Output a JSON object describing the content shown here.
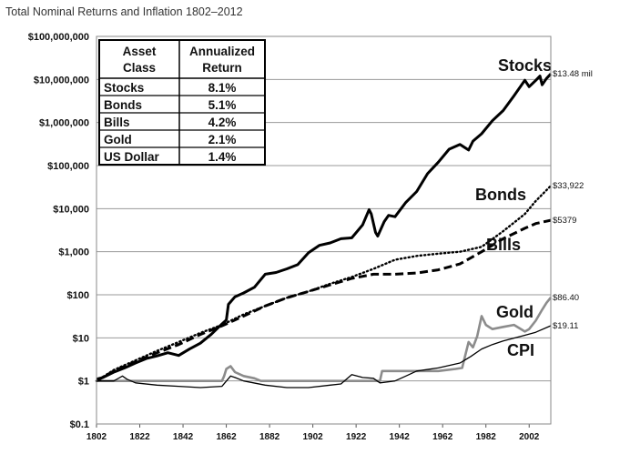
{
  "chart_data": {
    "type": "line",
    "title": "Total Nominal Returns and Inflation 1802–2012",
    "xlabel": "",
    "ylabel": "",
    "xlim": [
      1802,
      2012
    ],
    "ylim": [
      0.1,
      100000000
    ],
    "y_scale": "log",
    "grid": "horizontal",
    "x_ticks": [
      "1802",
      "1822",
      "1842",
      "1862",
      "1882",
      "1902",
      "1922",
      "1942",
      "1962",
      "1982",
      "2002"
    ],
    "y_ticks": [
      {
        "value": 100000000,
        "label": "$100,000,000"
      },
      {
        "value": 10000000,
        "label": "$10,000,000"
      },
      {
        "value": 1000000,
        "label": "$1,000,000"
      },
      {
        "value": 100000,
        "label": "$100,000"
      },
      {
        "value": 10000,
        "label": "$10,000"
      },
      {
        "value": 1000,
        "label": "$1,000"
      },
      {
        "value": 100,
        "label": "$100"
      },
      {
        "value": 10,
        "label": "$10"
      },
      {
        "value": 1,
        "label": "$1"
      },
      {
        "value": 0.1,
        "label": "$0.1"
      }
    ],
    "series": [
      {
        "name": "Stocks",
        "end_label": "$13.48 mil",
        "style": "solid-thick",
        "color": "#000000",
        "x": [
          1802,
          1805,
          1810,
          1815,
          1820,
          1825,
          1830,
          1835,
          1840,
          1845,
          1850,
          1855,
          1860,
          1862,
          1863,
          1866,
          1870,
          1875,
          1880,
          1885,
          1890,
          1895,
          1900,
          1905,
          1910,
          1915,
          1920,
          1925,
          1928,
          1929,
          1931,
          1932,
          1935,
          1937,
          1940,
          1945,
          1950,
          1955,
          1960,
          1965,
          1970,
          1974,
          1976,
          1980,
          1985,
          1990,
          1995,
          2000,
          2002,
          2005,
          2007,
          2008,
          2010,
          2012
        ],
        "y": [
          1.1,
          1.2,
          1.6,
          2.0,
          2.6,
          3.3,
          3.8,
          4.5,
          3.9,
          5.5,
          7.5,
          12,
          21,
          26,
          60,
          90,
          110,
          150,
          300,
          330,
          400,
          500,
          950,
          1400,
          1600,
          2000,
          2100,
          4200,
          9500,
          7500,
          2800,
          2300,
          5000,
          7000,
          6500,
          14000,
          25000,
          65000,
          120000,
          240000,
          310000,
          230000,
          370000,
          550000,
          1100000,
          1900000,
          4200000,
          9600000,
          6800000,
          9500000,
          12000000,
          7500000,
          10500000,
          13480000
        ]
      },
      {
        "name": "Bonds",
        "end_label": "$33,922",
        "style": "dotted",
        "color": "#000000",
        "x": [
          1802,
          1810,
          1820,
          1830,
          1840,
          1850,
          1860,
          1870,
          1880,
          1890,
          1900,
          1910,
          1920,
          1930,
          1940,
          1950,
          1960,
          1970,
          1980,
          1990,
          2000,
          2005,
          2012
        ],
        "y": [
          1.0,
          1.8,
          3.0,
          5.0,
          8.0,
          13,
          20,
          35,
          55,
          85,
          120,
          180,
          260,
          400,
          650,
          800,
          900,
          1000,
          1300,
          3000,
          7500,
          15000,
          33922
        ]
      },
      {
        "name": "Bills",
        "end_label": "$5379",
        "style": "dashed",
        "color": "#000000",
        "x": [
          1802,
          1810,
          1820,
          1830,
          1840,
          1850,
          1860,
          1870,
          1880,
          1890,
          1900,
          1910,
          1920,
          1930,
          1940,
          1950,
          1960,
          1970,
          1980,
          1990,
          2000,
          2005,
          2012
        ],
        "y": [
          1.0,
          1.7,
          2.8,
          4.5,
          7,
          12,
          19,
          32,
          55,
          85,
          120,
          170,
          240,
          300,
          300,
          320,
          380,
          520,
          1000,
          2000,
          3500,
          4500,
          5379
        ]
      },
      {
        "name": "Gold",
        "end_label": "$86.40",
        "style": "solid-gray",
        "color": "#8c8c8c",
        "x": [
          1802,
          1860,
          1861,
          1862,
          1864,
          1866,
          1870,
          1875,
          1878,
          1933,
          1934,
          1940,
          1950,
          1960,
          1968,
          1971,
          1974,
          1976,
          1978,
          1980,
          1982,
          1985,
          1990,
          1995,
          2000,
          2002,
          2005,
          2008,
          2010,
          2012
        ],
        "y": [
          1.0,
          1.0,
          1.3,
          1.9,
          2.2,
          1.6,
          1.3,
          1.15,
          1.0,
          1.0,
          1.7,
          1.7,
          1.7,
          1.7,
          1.9,
          2.0,
          8.0,
          6.0,
          11,
          32,
          20,
          16,
          18,
          20,
          14,
          16,
          25,
          45,
          65,
          86.4
        ]
      },
      {
        "name": "CPI",
        "end_label": "$19.11",
        "style": "solid-thin",
        "color": "#000000",
        "x": [
          1802,
          1810,
          1814,
          1816,
          1820,
          1830,
          1840,
          1850,
          1860,
          1864,
          1866,
          1870,
          1880,
          1890,
          1900,
          1910,
          1915,
          1920,
          1925,
          1930,
          1933,
          1940,
          1945,
          1950,
          1960,
          1970,
          1975,
          1980,
          1985,
          1990,
          2000,
          2005,
          2012
        ],
        "y": [
          1.0,
          1.0,
          1.3,
          1.1,
          0.9,
          0.8,
          0.75,
          0.7,
          0.75,
          1.3,
          1.2,
          1.0,
          0.8,
          0.7,
          0.7,
          0.8,
          0.85,
          1.4,
          1.2,
          1.15,
          0.9,
          1.0,
          1.3,
          1.7,
          2.0,
          2.6,
          3.7,
          5.5,
          7.0,
          8.5,
          11.5,
          13.5,
          19.11
        ]
      }
    ]
  },
  "table": {
    "headers": [
      [
        "Asset",
        "Class"
      ],
      [
        "Annualized",
        "Return"
      ]
    ],
    "rows": [
      {
        "asset": "Stocks",
        "return": "8.1%"
      },
      {
        "asset": "Bonds",
        "return": "5.1%"
      },
      {
        "asset": "Bills",
        "return": "4.2%"
      },
      {
        "asset": "Gold",
        "return": "2.1%"
      },
      {
        "asset": "US Dollar",
        "return": "1.4%"
      }
    ]
  }
}
